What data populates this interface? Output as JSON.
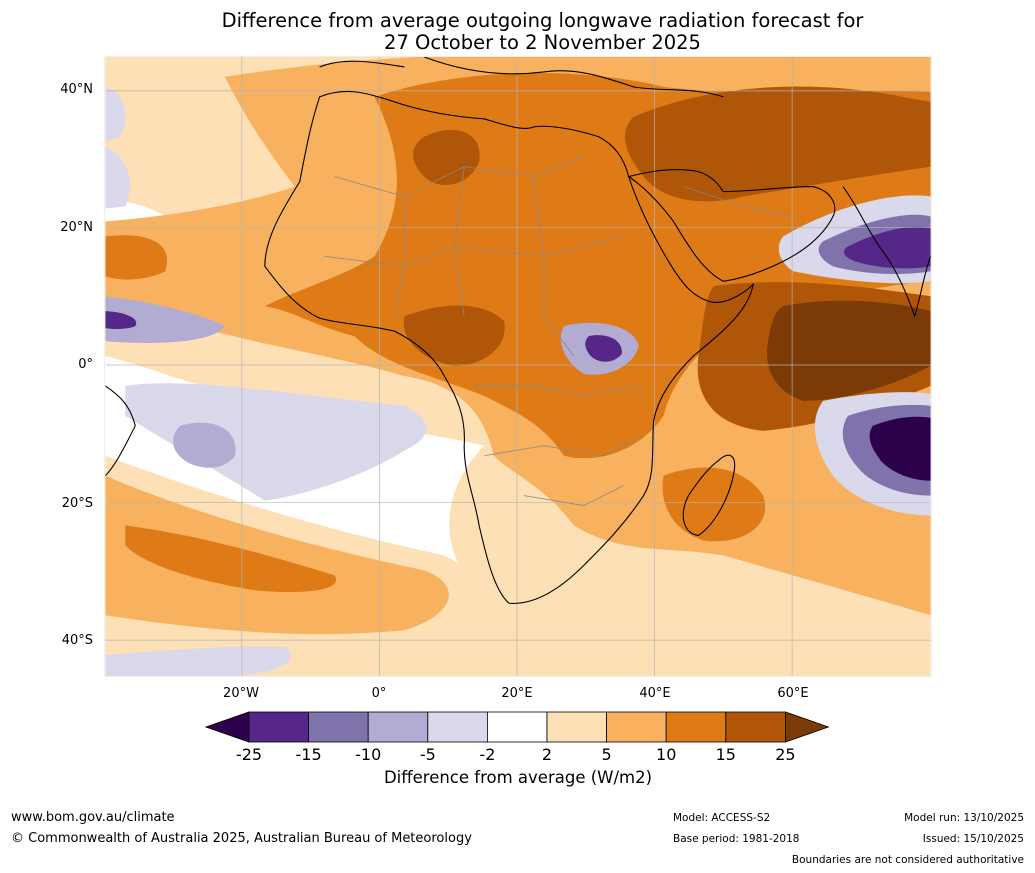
{
  "title": {
    "line1": "Difference from average outgoing longwave radiation forecast for",
    "line2": "27 October to 2 November 2025"
  },
  "map": {
    "lat_labels": [
      "40°N",
      "20°N",
      "0°",
      "20°S",
      "40°S"
    ],
    "lon_labels": [
      "20°W",
      "0°",
      "20°E",
      "40°E",
      "60°E"
    ],
    "region": "Africa",
    "colors": {
      "ocean_neutral": "#ffffff",
      "p2_5": "#fde0b5",
      "p5_10": "#f8b15f",
      "p10_15": "#de7b17",
      "p15_25": "#b05608",
      "p25plus": "#7b3a06",
      "n2_5": "#d9d9eb",
      "n5_10": "#b2abd2",
      "n10_15": "#8073ac",
      "n15_25": "#542788",
      "n25plus": "#2d004b",
      "coastline": "#000000",
      "borders": "#888888",
      "gridlines": "#b4b4b4"
    }
  },
  "colorbar": {
    "ticks": [
      "-25",
      "-15",
      "-10",
      "-5",
      "-2",
      "2",
      "5",
      "10",
      "15",
      "25"
    ],
    "colors": [
      "#2d004b",
      "#542788",
      "#8073ac",
      "#b2abd2",
      "#d9d9eb",
      "#ffffff",
      "#fde0b5",
      "#f8b15f",
      "#de7b17",
      "#b05608",
      "#7b3a06"
    ],
    "label": "Difference from average (W/m2)"
  },
  "footer": {
    "website": "www.bom.gov.au/climate",
    "copyright": "© Commonwealth of Australia 2025, Australian Bureau of Meteorology",
    "model": "Model: ACCESS-S2",
    "base_period": "Base period: 1981-2018",
    "model_run": "Model run: 13/10/2025",
    "issued": "Issued: 15/10/2025",
    "disclaimer": "Boundaries are not considered authoritative"
  }
}
